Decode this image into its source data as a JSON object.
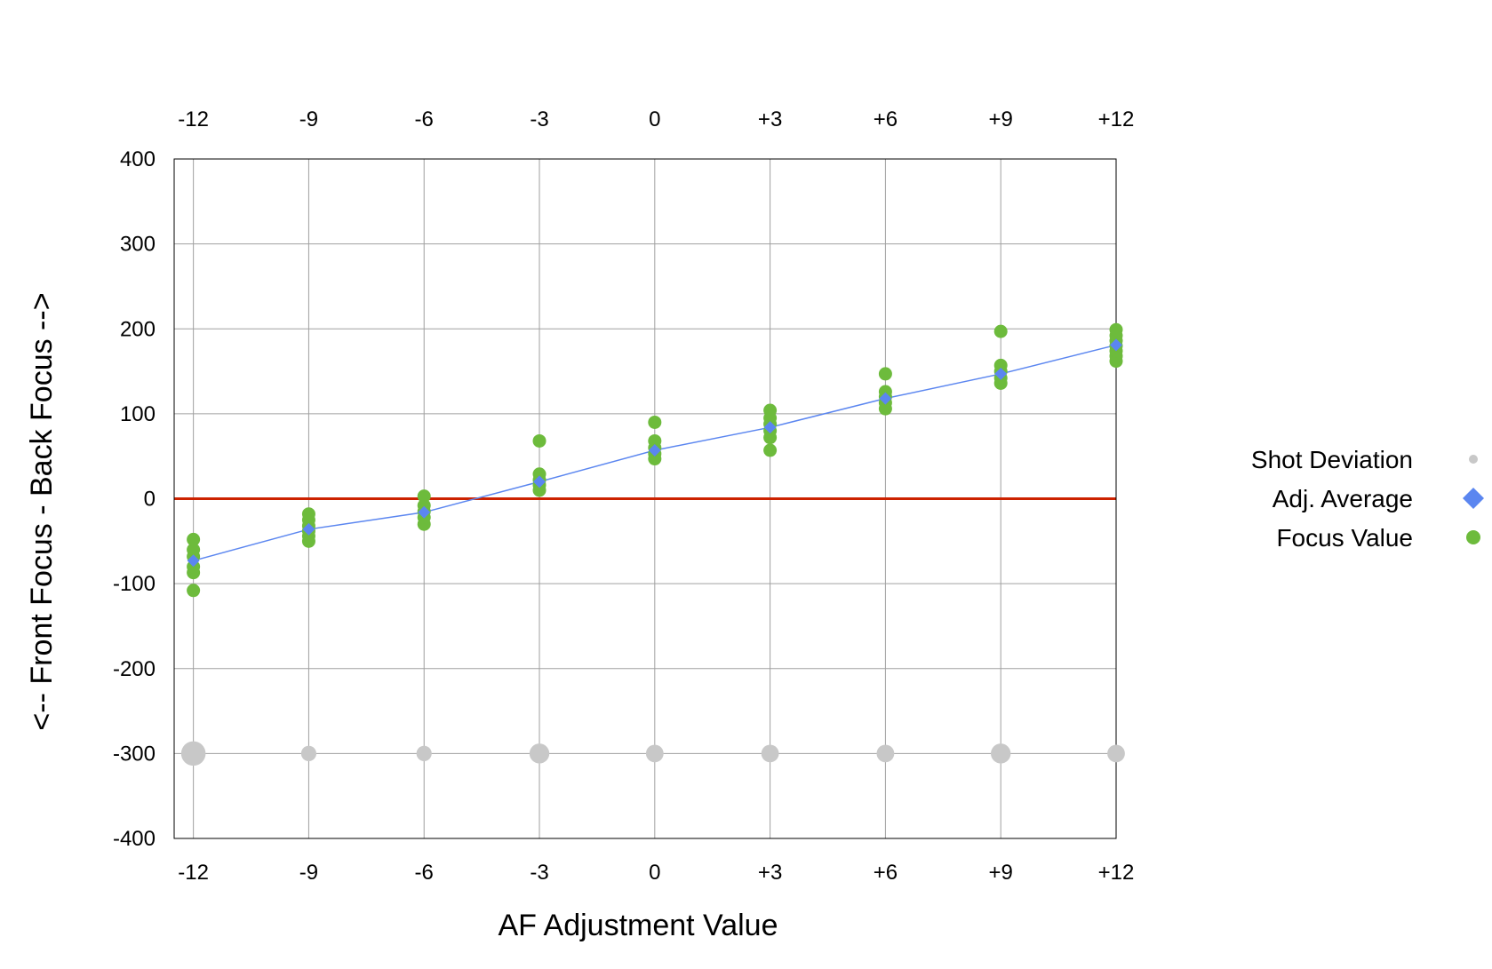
{
  "chart_data": {
    "type": "scatter",
    "xlabel": "AF Adjustment Value",
    "ylabel": "<-- Front Focus - Back Focus -->",
    "x_ticks": [
      "-12",
      "-9",
      "-6",
      "-3",
      "0",
      "+3",
      "+6",
      "+9",
      "+12"
    ],
    "x_tick_values": [
      -12,
      -9,
      -6,
      -3,
      0,
      3,
      6,
      9,
      12
    ],
    "xlim": [
      -12.5,
      12
    ],
    "y_ticks": [
      "400",
      "300",
      "200",
      "100",
      "0",
      "-100",
      "-200",
      "-300",
      "-400"
    ],
    "y_tick_values": [
      400,
      300,
      200,
      100,
      0,
      -100,
      -200,
      -300,
      -400
    ],
    "ylim": [
      -400,
      400
    ],
    "grid": true,
    "reference_line": {
      "y": 0,
      "color": "#cc2200"
    },
    "legend_position": "right",
    "series": [
      {
        "name": "Shot Deviation",
        "kind": "bubble",
        "color": "#c8c8c8",
        "points": [
          {
            "x": -12,
            "y": -300,
            "size": 3
          },
          {
            "x": -9,
            "y": -300,
            "size": 1
          },
          {
            "x": -6,
            "y": -300,
            "size": 1
          },
          {
            "x": -3,
            "y": -300,
            "size": 2
          },
          {
            "x": 0,
            "y": -300,
            "size": 1.5
          },
          {
            "x": 3,
            "y": -300,
            "size": 1.5
          },
          {
            "x": 6,
            "y": -300,
            "size": 1.5
          },
          {
            "x": 9,
            "y": -300,
            "size": 2
          },
          {
            "x": 12,
            "y": -300,
            "size": 1.5
          }
        ]
      },
      {
        "name": "Adj. Average",
        "kind": "line-diamond",
        "color": "#5b86f0",
        "points": [
          {
            "x": -12,
            "y": -73
          },
          {
            "x": -9,
            "y": -36
          },
          {
            "x": -6,
            "y": -16
          },
          {
            "x": -3,
            "y": 20
          },
          {
            "x": 0,
            "y": 57
          },
          {
            "x": 3,
            "y": 84
          },
          {
            "x": 6,
            "y": 118
          },
          {
            "x": 9,
            "y": 147
          },
          {
            "x": 12,
            "y": 181
          }
        ]
      },
      {
        "name": "Focus Value",
        "kind": "dot",
        "color": "#6dbb3c",
        "points": [
          {
            "x": -12,
            "y": -108
          },
          {
            "x": -12,
            "y": -87
          },
          {
            "x": -12,
            "y": -80
          },
          {
            "x": -12,
            "y": -68
          },
          {
            "x": -12,
            "y": -60
          },
          {
            "x": -12,
            "y": -48
          },
          {
            "x": -9,
            "y": -50
          },
          {
            "x": -9,
            "y": -44
          },
          {
            "x": -9,
            "y": -38
          },
          {
            "x": -9,
            "y": -32
          },
          {
            "x": -9,
            "y": -25
          },
          {
            "x": -9,
            "y": -18
          },
          {
            "x": -6,
            "y": -30
          },
          {
            "x": -6,
            "y": -22
          },
          {
            "x": -6,
            "y": -15
          },
          {
            "x": -6,
            "y": -8
          },
          {
            "x": -6,
            "y": 3
          },
          {
            "x": -3,
            "y": 10
          },
          {
            "x": -3,
            "y": 16
          },
          {
            "x": -3,
            "y": 22
          },
          {
            "x": -3,
            "y": 29
          },
          {
            "x": -3,
            "y": 68
          },
          {
            "x": 0,
            "y": 47
          },
          {
            "x": 0,
            "y": 53
          },
          {
            "x": 0,
            "y": 60
          },
          {
            "x": 0,
            "y": 68
          },
          {
            "x": 0,
            "y": 90
          },
          {
            "x": 3,
            "y": 57
          },
          {
            "x": 3,
            "y": 72
          },
          {
            "x": 3,
            "y": 80
          },
          {
            "x": 3,
            "y": 88
          },
          {
            "x": 3,
            "y": 95
          },
          {
            "x": 3,
            "y": 104
          },
          {
            "x": 6,
            "y": 106
          },
          {
            "x": 6,
            "y": 113
          },
          {
            "x": 6,
            "y": 120
          },
          {
            "x": 6,
            "y": 126
          },
          {
            "x": 6,
            "y": 147
          },
          {
            "x": 9,
            "y": 136
          },
          {
            "x": 9,
            "y": 142
          },
          {
            "x": 9,
            "y": 150
          },
          {
            "x": 9,
            "y": 157
          },
          {
            "x": 9,
            "y": 197
          },
          {
            "x": 12,
            "y": 162
          },
          {
            "x": 12,
            "y": 168
          },
          {
            "x": 12,
            "y": 174
          },
          {
            "x": 12,
            "y": 180
          },
          {
            "x": 12,
            "y": 186
          },
          {
            "x": 12,
            "y": 192
          },
          {
            "x": 12,
            "y": 199
          }
        ]
      }
    ]
  }
}
